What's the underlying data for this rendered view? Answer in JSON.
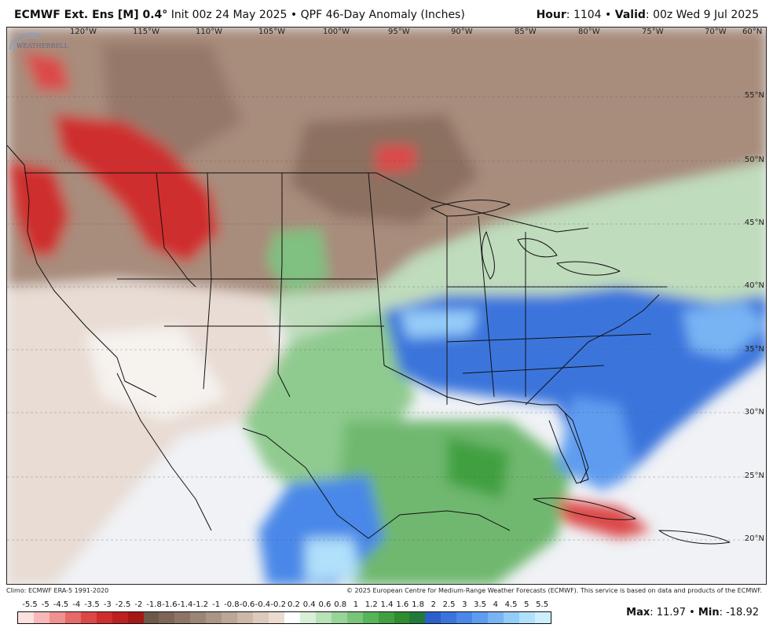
{
  "header": {
    "model": "ECMWF Ext. Ens [M] 0.4",
    "degree": "°",
    "init": " Init 00z 24 May 2025 • QPF 46-Day Anomaly (Inches)",
    "hour_label": "Hour",
    "hour_value": ": 1104 • ",
    "valid_label": "Valid",
    "valid_value": ": 00z Wed 9 Jul 2025"
  },
  "map": {
    "longitudes": [
      "120°W",
      "115°W",
      "110°W",
      "105°W",
      "100°W",
      "95°W",
      "90°W",
      "85°W",
      "80°W",
      "75°W",
      "70°W",
      "60°N"
    ],
    "latitudes": [
      "55°N",
      "50°N",
      "45°N",
      "40°N",
      "35°N",
      "30°N",
      "25°N",
      "20°N"
    ],
    "logo_text": "WEATHERBELL"
  },
  "credits": {
    "climo": "Climo: ECMWF ERA-5 1991-2020",
    "copyright": "© 2025 European Centre for Medium-Range Weather Forecasts (ECMWF). This service is based on data and products of the ECMWF."
  },
  "legend": {
    "labels": [
      "-5.5",
      "-5",
      "-4.5",
      "-4",
      "-3.5",
      "-3",
      "-2.5",
      "-2",
      "-1.8",
      "-1.6",
      "-1.4",
      "-1.2",
      "-1",
      "-0.8",
      "-0.6",
      "-0.4",
      "-0.2",
      "0.2",
      "0.4",
      "0.6",
      "0.8",
      "1",
      "1.2",
      "1.4",
      "1.6",
      "1.8",
      "2",
      "2.5",
      "3",
      "3.5",
      "4",
      "4.5",
      "5",
      "5.5"
    ],
    "colors": [
      "#fde0e0",
      "#f8b8b8",
      "#f09090",
      "#e66a6a",
      "#dc4848",
      "#cf2e2e",
      "#bd2020",
      "#a51818",
      "#6e5848",
      "#7d6656",
      "#8c7565",
      "#9b8575",
      "#ab9585",
      "#bca696",
      "#ccb8a8",
      "#dccabc",
      "#ecdcd0",
      "#ffffff",
      "#d8f0d8",
      "#b8e2b8",
      "#98d498",
      "#78c478",
      "#58b458",
      "#40a040",
      "#308c30",
      "#207a3c",
      "#2a60c8",
      "#3a74dc",
      "#4a88e8",
      "#5e9cf0",
      "#78b4f4",
      "#94ccf8",
      "#b0e0fa",
      "#cceffc"
    ]
  },
  "stats": {
    "max_label": "Max",
    "max_value": ": 11.97",
    "min_label": "Min",
    "min_value": ": -18.92",
    "sep": " • "
  }
}
